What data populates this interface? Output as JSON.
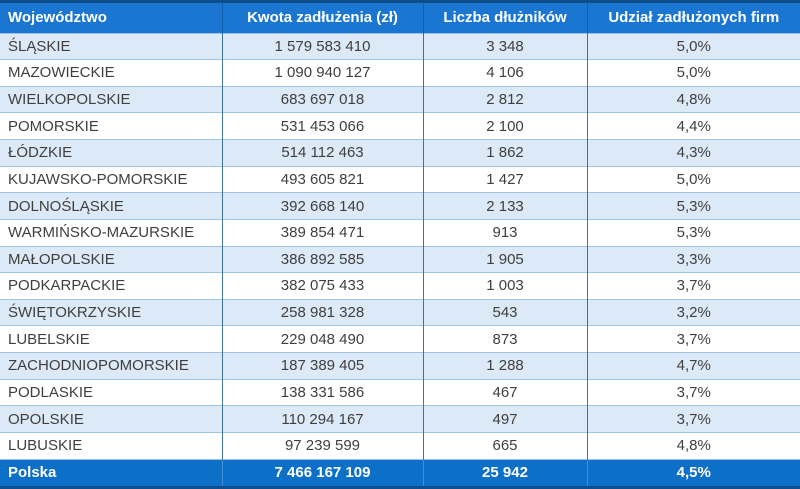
{
  "chart_data": {
    "type": "table",
    "columns": [
      "Województwo",
      "Kwota zadłużenia (zł)",
      "Liczba dłużników",
      "Udział zadłużonych firm"
    ],
    "rows": [
      {
        "wojewodztwo": "ŚLĄSKIE",
        "kwota_zl": 1579583410,
        "kwota_display": "1 579 583 410",
        "liczba_dluznikow": 3348,
        "liczba_display": "3 348",
        "udzial": "5,0%"
      },
      {
        "wojewodztwo": "MAZOWIECKIE",
        "kwota_zl": 1090940127,
        "kwota_display": "1 090 940 127",
        "liczba_dluznikow": 4106,
        "liczba_display": "4 106",
        "udzial": "5,0%"
      },
      {
        "wojewodztwo": "WIELKOPOLSKIE",
        "kwota_zl": 683697018,
        "kwota_display": "683 697 018",
        "liczba_dluznikow": 2812,
        "liczba_display": "2 812",
        "udzial": "4,8%"
      },
      {
        "wojewodztwo": "POMORSKIE",
        "kwota_zl": 531453066,
        "kwota_display": "531 453 066",
        "liczba_dluznikow": 2100,
        "liczba_display": "2 100",
        "udzial": "4,4%"
      },
      {
        "wojewodztwo": "ŁÓDZKIE",
        "kwota_zl": 514112463,
        "kwota_display": "514 112 463",
        "liczba_dluznikow": 1862,
        "liczba_display": "1 862",
        "udzial": "4,3%"
      },
      {
        "wojewodztwo": "KUJAWSKO-POMORSKIE",
        "kwota_zl": 493605821,
        "kwota_display": "493 605 821",
        "liczba_dluznikow": 1427,
        "liczba_display": "1 427",
        "udzial": "5,0%"
      },
      {
        "wojewodztwo": "DOLNOŚLĄSKIE",
        "kwota_zl": 392668140,
        "kwota_display": "392 668 140",
        "liczba_dluznikow": 2133,
        "liczba_display": "2 133",
        "udzial": "5,3%"
      },
      {
        "wojewodztwo": "WARMIŃSKO-MAZURSKIE",
        "kwota_zl": 389854471,
        "kwota_display": "389 854 471",
        "liczba_dluznikow": 913,
        "liczba_display": "913",
        "udzial": "5,3%"
      },
      {
        "wojewodztwo": "MAŁOPOLSKIE",
        "kwota_zl": 386892585,
        "kwota_display": "386 892 585",
        "liczba_dluznikow": 1905,
        "liczba_display": "1 905",
        "udzial": "3,3%"
      },
      {
        "wojewodztwo": "PODKARPACKIE",
        "kwota_zl": 382075433,
        "kwota_display": "382 075 433",
        "liczba_dluznikow": 1003,
        "liczba_display": "1 003",
        "udzial": "3,7%"
      },
      {
        "wojewodztwo": "ŚWIĘTOKRZYSKIE",
        "kwota_zl": 258981328,
        "kwota_display": "258 981 328",
        "liczba_dluznikow": 543,
        "liczba_display": "543",
        "udzial": "3,2%"
      },
      {
        "wojewodztwo": "LUBELSKIE",
        "kwota_zl": 229048490,
        "kwota_display": "229 048 490",
        "liczba_dluznikow": 873,
        "liczba_display": "873",
        "udzial": "3,7%"
      },
      {
        "wojewodztwo": "ZACHODNIOPOMORSKIE",
        "kwota_zl": 187389405,
        "kwota_display": "187 389 405",
        "liczba_dluznikow": 1288,
        "liczba_display": "1 288",
        "udzial": "4,7%"
      },
      {
        "wojewodztwo": "PODLASKIE",
        "kwota_zl": 138331586,
        "kwota_display": "138 331 586",
        "liczba_dluznikow": 467,
        "liczba_display": "467",
        "udzial": "3,7%"
      },
      {
        "wojewodztwo": "OPOLSKIE",
        "kwota_zl": 110294167,
        "kwota_display": "110 294 167",
        "liczba_dluznikow": 497,
        "liczba_display": "497",
        "udzial": "3,7%"
      },
      {
        "wojewodztwo": "LUBUSKIE",
        "kwota_zl": 97239599,
        "kwota_display": "97 239 599",
        "liczba_dluznikow": 665,
        "liczba_display": "665",
        "udzial": "4,8%"
      }
    ],
    "total": {
      "label": "Polska",
      "kwota_zl": 7466167109,
      "kwota_display": "7 466 167 109",
      "liczba_dluznikow": 25942,
      "liczba_display": "25 942",
      "udzial": "4,5%"
    }
  },
  "colors": {
    "header_bg": "#1b76d2",
    "header_text": "#ffffff",
    "row_alt_bg": "#dce9f6",
    "row_plain_bg": "#ffffff",
    "row_separator": "#9dc3e6",
    "column_separator": "#41719c",
    "total_bg": "#0d70c8",
    "outer_border": "#0d4e8c",
    "body_text": "#3f3f3f"
  }
}
